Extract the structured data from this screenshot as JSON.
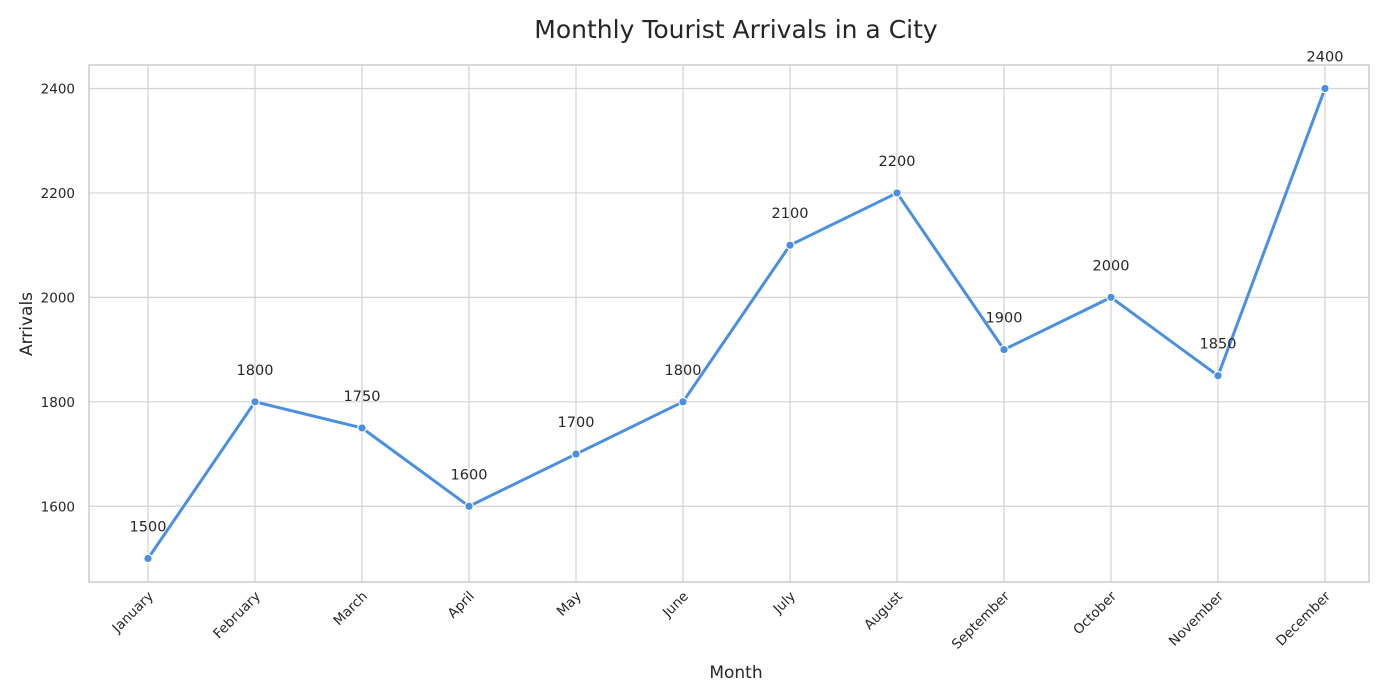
{
  "chart_data": {
    "type": "line",
    "title": "Monthly Tourist Arrivals in a City",
    "xlabel": "Month",
    "ylabel": "Arrivals",
    "categories": [
      "January",
      "February",
      "March",
      "April",
      "May",
      "June",
      "July",
      "August",
      "September",
      "October",
      "November",
      "December"
    ],
    "series": [
      {
        "values": [
          1500,
          1800,
          1750,
          1600,
          1700,
          1800,
          2100,
          2200,
          1900,
          2000,
          1850,
          2400
        ]
      }
    ],
    "ylim": [
      1455,
      2445
    ],
    "yticks": [
      1600,
      1800,
      2000,
      2200,
      2400
    ],
    "grid": true,
    "data_labels": true,
    "colors": {
      "line": "#4a90e2",
      "grid": "#d3d3d3",
      "frame": "#cccccc",
      "text": "#262626"
    }
  }
}
